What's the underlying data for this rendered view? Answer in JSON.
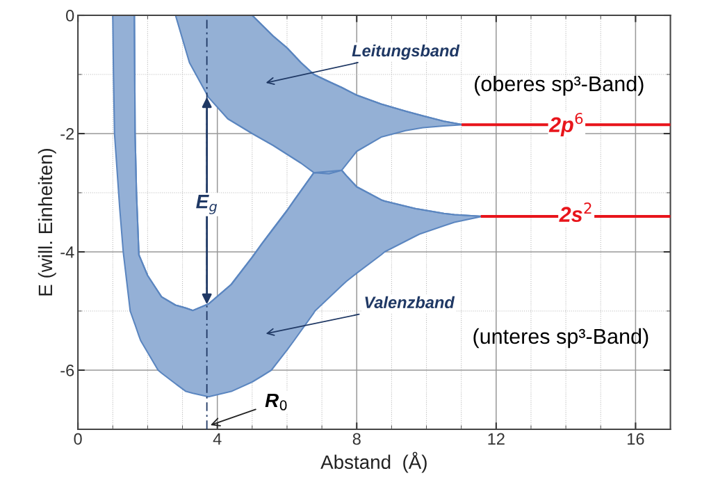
{
  "chart_data": {
    "type": "line",
    "xlabel": "Abstand  (Å)",
    "ylabel": "E (will. Einheiten)",
    "xlim": [
      0,
      17
    ],
    "ylim": [
      -7,
      0
    ],
    "xticks": [
      0,
      4,
      8,
      12,
      16
    ],
    "yticks": [
      0,
      -2,
      -4,
      -6
    ],
    "grid": true,
    "series": [
      {
        "color": "#5b86c0",
        "x": [
          1.0,
          1.02,
          1.05,
          1.2,
          1.3,
          1.5,
          1.62,
          1.64,
          1.68,
          1.75,
          1.8,
          2.0,
          2.3,
          2.4,
          2.8,
          3.1,
          3.3,
          3.75,
          4.4,
          5.0,
          5.28,
          5.55,
          6.0,
          6.2,
          6.77,
          6.8,
          7.57,
          7.7,
          8.0,
          8.7,
          8.8,
          9.7,
          9.8,
          10.5,
          10.8,
          11.6
        ],
        "values": [
          0,
          0,
          0,
          0,
          0,
          0,
          0,
          -2,
          -3,
          -4.05,
          -4.12,
          -4.4,
          -4.67,
          -4.76,
          -4.9,
          -4.95,
          -4.99,
          -4.88,
          -4.55,
          -4.09,
          -3.86,
          -3.65,
          -3.3,
          -3.13,
          -2.66,
          -2.66,
          -2.62,
          -2.71,
          -2.9,
          -3.12,
          -3.14,
          -3.27,
          -3.28,
          -3.35,
          -3.37,
          -3.4
        ],
        "upper": [
          0,
          0,
          0,
          0,
          0,
          0,
          0,
          -2,
          -3,
          -4.05,
          -4.12,
          -4.4,
          -4.67,
          -4.76,
          -4.9,
          -4.95,
          -4.99,
          -4.88,
          -4.55,
          -4.09,
          -3.86,
          -3.65,
          -3.3,
          -3.13,
          -2.66,
          -2.66,
          -2.62,
          -2.71,
          -2.9,
          -3.12,
          -3.14,
          -3.27,
          -3.28,
          -3.35,
          -3.37,
          -3.4
        ],
        "lower": [
          0,
          -1,
          -2,
          -3.27,
          -4,
          -5,
          -5.2,
          -5.23,
          -5.3,
          -5.42,
          -5.5,
          -5.7,
          -6,
          -6.05,
          -6.23,
          -6.36,
          -6.39,
          -6.45,
          -6.36,
          -6.2,
          -6.1,
          -6,
          -5.66,
          -5.5,
          -5.03,
          -5,
          -4.57,
          -4.5,
          -4.36,
          -4.05,
          -4,
          -3.73,
          -3.7,
          -3.56,
          -3.5,
          -3.4
        ]
      },
      {
        "color": "#5a85bf",
        "x": [
          2.8,
          3.2,
          3.75,
          4.3,
          5.0,
          5.6,
          6.0,
          6.4,
          6.77,
          7.2,
          7.57,
          8.0,
          8.7,
          9.4,
          9.9,
          10.5,
          11.05
        ],
        "values": [
          0,
          0,
          0,
          0,
          0,
          -0.35,
          -0.55,
          -0.8,
          -1.0,
          -1.12,
          -1.22,
          -1.35,
          -1.5,
          -1.62,
          -1.7,
          -1.79,
          -1.85
        ],
        "upper": [
          0,
          0,
          0,
          0,
          0,
          -0.35,
          -0.55,
          -0.8,
          -1.0,
          -1.12,
          -1.22,
          -1.35,
          -1.5,
          -1.62,
          -1.7,
          -1.79,
          -1.85
        ],
        "lower": [
          0,
          -0.8,
          -1.39,
          -1.75,
          -2.0,
          -2.2,
          -2.35,
          -2.5,
          -2.66,
          -2.68,
          -2.62,
          -2.3,
          -2.06,
          -1.95,
          -1.9,
          -1.87,
          -1.85
        ]
      },
      {
        "name": "2p$^{6}$",
        "color": "#e8151b",
        "x": [
          11.05,
          17
        ],
        "values": [
          -1.85,
          -1.85
        ]
      },
      {
        "name": "2s$^{2}$",
        "color": "#e8151b",
        "x": [
          11.6,
          17
        ],
        "values": [
          -3.4,
          -3.4
        ]
      },
      {
        "color": "#1f3864",
        "line_style": "dashed",
        "x": [
          3.7,
          3.7,
          3.7,
          3.7
        ],
        "values": [
          -7,
          -4.92,
          -1.35,
          0
        ]
      }
    ],
    "annotations": [
      "Leitungsband",
      "Valenzband",
      {
        "text": "R$_{0}$",
        "x": 3.75,
        "y": -6.94
      },
      {
        "text": "E$_{g}$",
        "x": 3.7,
        "y": -3.2
      },
      "(oberes sp³-Band)",
      "(unteres sp³-Band)"
    ]
  }
}
